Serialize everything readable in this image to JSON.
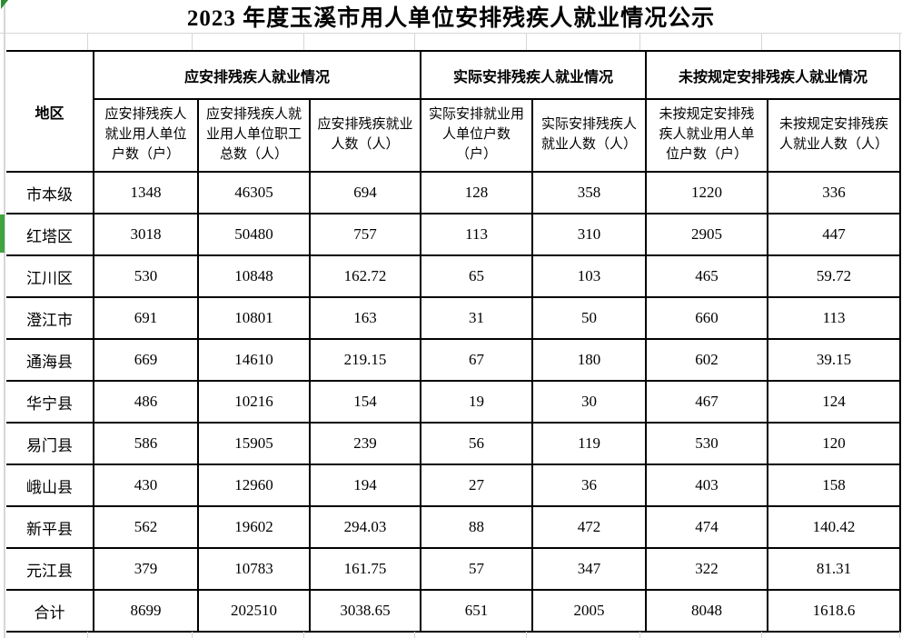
{
  "title": "2023 年度玉溪市用人单位安排残疾人就业情况公示",
  "colors": {
    "marker_green": "#3fa33f",
    "corner_green": "#2e8b34"
  },
  "table": {
    "region_header": "地区",
    "groups": [
      {
        "label": "应安排残疾人就业情况",
        "columns": [
          "应安排残疾人\n就业用人单位\n户数（户）",
          "应安排残疾人就\n业用人单位职工\n总数（人）",
          "应安排残疾就业\n人数（人）"
        ]
      },
      {
        "label": "实际安排残疾人就业情况",
        "columns": [
          "实际安排就业用\n人单位户数\n（户）",
          "实际安排残疾人\n就业人数（人）"
        ]
      },
      {
        "label": "未按规定安排残疾人就业情况",
        "columns": [
          "未按规定安排残\n疾人就业用人单\n位户数（户）",
          "未按规定安排残疾\n人就业人数（人）"
        ]
      }
    ],
    "rows": [
      {
        "region": "市本级",
        "values": [
          "1348",
          "46305",
          "694",
          "128",
          "358",
          "1220",
          "336"
        ]
      },
      {
        "region": "红塔区",
        "values": [
          "3018",
          "50480",
          "757",
          "113",
          "310",
          "2905",
          "447"
        ]
      },
      {
        "region": "江川区",
        "values": [
          "530",
          "10848",
          "162.72",
          "65",
          "103",
          "465",
          "59.72"
        ]
      },
      {
        "region": "澄江市",
        "values": [
          "691",
          "10801",
          "163",
          "31",
          "50",
          "660",
          "113"
        ]
      },
      {
        "region": "通海县",
        "values": [
          "669",
          "14610",
          "219.15",
          "67",
          "180",
          "602",
          "39.15"
        ]
      },
      {
        "region": "华宁县",
        "values": [
          "486",
          "10216",
          "154",
          "19",
          "30",
          "467",
          "124"
        ]
      },
      {
        "region": "易门县",
        "values": [
          "586",
          "15905",
          "239",
          "56",
          "119",
          "530",
          "120"
        ]
      },
      {
        "region": "峨山县",
        "values": [
          "430",
          "12960",
          "194",
          "27",
          "36",
          "403",
          "158"
        ]
      },
      {
        "region": "新平县",
        "values": [
          "562",
          "19602",
          "294.03",
          "88",
          "472",
          "474",
          "140.42"
        ]
      },
      {
        "region": "元江县",
        "values": [
          "379",
          "10783",
          "161.75",
          "57",
          "347",
          "322",
          "81.31"
        ]
      },
      {
        "region": "合计",
        "values": [
          "8699",
          "202510",
          "3038.65",
          "651",
          "2005",
          "8048",
          "1618.6"
        ]
      }
    ]
  }
}
